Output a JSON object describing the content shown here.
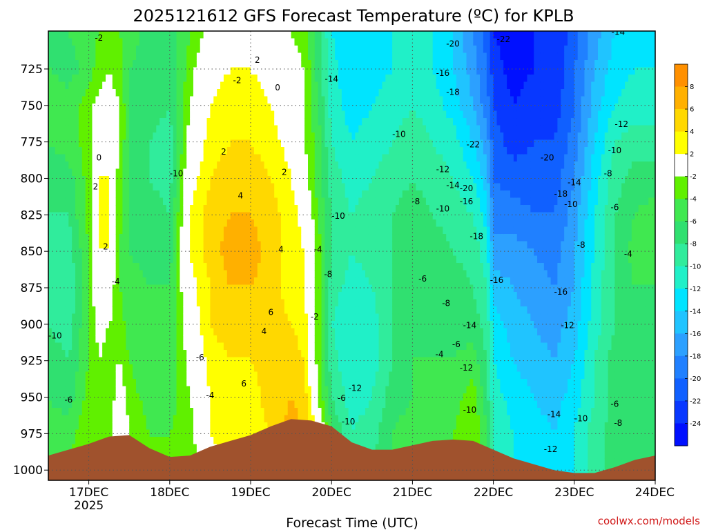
{
  "chart_data": {
    "type": "heatmap",
    "title": "2025121612 GFS Forecast Temperature (ºC) for KPLB",
    "xlabel": "Forecast Time (UTC)",
    "ylabel": "",
    "x_tick_labels": [
      "17DEC",
      "18DEC",
      "19DEC",
      "20DEC",
      "21DEC",
      "22DEC",
      "23DEC",
      "24DEC"
    ],
    "x_tick_year": "2025",
    "x_ticks_hours": [
      12,
      36,
      60,
      84,
      108,
      132,
      156,
      180
    ],
    "xlim_hours": [
      0,
      180
    ],
    "y_tick_labels": [
      "725",
      "750",
      "775",
      "800",
      "825",
      "850",
      "875",
      "900",
      "925",
      "950",
      "975",
      "1000"
    ],
    "y_ticks": [
      725,
      750,
      775,
      800,
      825,
      850,
      875,
      900,
      925,
      950,
      975,
      1000
    ],
    "ylim_hpa": [
      699,
      1007
    ],
    "grid": true,
    "colorbar": {
      "levels": [
        -26,
        -24,
        -22,
        -20,
        -18,
        -16,
        -14,
        -12,
        -10,
        -8,
        -6,
        -4,
        -2,
        2,
        4,
        6,
        8,
        10
      ],
      "colors": [
        "#0010ff",
        "#0838ff",
        "#1060ff",
        "#2080ff",
        "#2ca0ff",
        "#20c4ff",
        "#00e4ff",
        "#20f0c8",
        "#30ec9c",
        "#30e070",
        "#40e850",
        "#60f000",
        "#ffffff",
        "#ffff00",
        "#ffd800",
        "#ffb000",
        "#ff9000"
      ],
      "tick_labels": [
        "-24",
        "-22",
        "-20",
        "-18",
        "-16",
        "-14",
        "-12",
        "-10",
        "-8",
        "-6",
        "-4",
        "-2",
        "2",
        "4",
        "6",
        "8"
      ]
    },
    "columns": [
      {
        "x": 0,
        "t": [
          -6,
          -6,
          -4,
          -6,
          -7,
          -8,
          -9,
          -9,
          -8,
          -7,
          -6,
          -5,
          -4
        ]
      },
      {
        "x": 6,
        "t": [
          -6,
          -7,
          -5,
          -5,
          -7,
          -8,
          -9,
          -10,
          -9,
          -8,
          -7,
          -5,
          -4
        ]
      },
      {
        "x": 12,
        "t": [
          -5,
          -5,
          -3,
          -3,
          -3,
          -3,
          -4,
          -4,
          -4,
          -4,
          -3,
          -2,
          -2
        ]
      },
      {
        "x": 15,
        "t": [
          -4,
          -3,
          -1,
          1,
          2,
          3,
          2,
          1,
          -1,
          -2,
          -3,
          -4,
          -2
        ]
      },
      {
        "x": 18,
        "t": [
          -3,
          -2,
          -1,
          1,
          2,
          3,
          2,
          0,
          -2,
          -3,
          -4,
          -4,
          -3
        ]
      },
      {
        "x": 21,
        "t": [
          -4,
          -3,
          -2,
          -2,
          -3,
          -3,
          -4,
          -4,
          -3,
          -2,
          0,
          2,
          2
        ]
      },
      {
        "x": 24,
        "t": [
          -5,
          -6,
          -6,
          -6,
          -6,
          -6,
          -6,
          -5,
          -5,
          -4,
          -3,
          -2,
          -2
        ]
      },
      {
        "x": 30,
        "t": [
          -7,
          -7,
          -7,
          -8,
          -8,
          -7,
          -7,
          -6,
          -6,
          -6,
          -5,
          -4,
          -3
        ]
      },
      {
        "x": 36,
        "t": [
          -7,
          -8,
          -8,
          -9,
          -9,
          -8,
          -7,
          -6,
          -6,
          -6,
          -5,
          -4,
          -3
        ]
      },
      {
        "x": 42,
        "t": [
          -4,
          -3,
          -2,
          -1,
          1,
          2,
          2,
          1,
          0,
          -1,
          -2,
          -3,
          -4
        ]
      },
      {
        "x": 48,
        "t": [
          -1,
          1,
          2,
          3,
          4,
          5,
          5,
          4,
          4,
          3,
          2,
          2,
          1
        ]
      },
      {
        "x": 54,
        "t": [
          0,
          2,
          3,
          4,
          5,
          6,
          7,
          6,
          5,
          4,
          3,
          3,
          2
        ]
      },
      {
        "x": 60,
        "t": [
          1,
          2,
          3,
          4,
          5,
          6,
          7,
          6,
          5,
          4,
          3,
          3,
          2
        ]
      },
      {
        "x": 66,
        "t": [
          -1,
          1,
          2,
          3,
          4,
          5,
          5,
          5,
          5,
          5,
          5,
          4,
          3
        ]
      },
      {
        "x": 72,
        "t": [
          -2,
          -1,
          -1,
          1,
          2,
          3,
          3,
          3,
          4,
          5,
          6,
          7,
          6
        ]
      },
      {
        "x": 76,
        "t": [
          -3,
          -2,
          -2,
          -2,
          -1,
          1,
          2,
          2,
          3,
          4,
          5,
          6,
          5
        ]
      },
      {
        "x": 80,
        "t": [
          -7,
          -7,
          -6,
          -5,
          -5,
          -4,
          -3,
          -3,
          -3,
          -3,
          -2,
          2,
          3
        ]
      },
      {
        "x": 84,
        "t": [
          -12,
          -11,
          -11,
          -10,
          -9,
          -8,
          -8,
          -9,
          -10,
          -9,
          -8,
          -6,
          -5
        ]
      },
      {
        "x": 90,
        "t": [
          -14,
          -14,
          -13,
          -12,
          -11,
          -10,
          -10,
          -11,
          -12,
          -12,
          -11,
          -10,
          -9
        ]
      },
      {
        "x": 96,
        "t": [
          -13,
          -13,
          -12,
          -11,
          -10,
          -9,
          -9,
          -10,
          -11,
          -11,
          -10,
          -9,
          -8
        ]
      },
      {
        "x": 102,
        "t": [
          -12,
          -12,
          -11,
          -10,
          -9,
          -8,
          -8,
          -8,
          -8,
          -8,
          -7,
          -6,
          -6
        ]
      },
      {
        "x": 108,
        "t": [
          -11,
          -11,
          -10,
          -9,
          -8,
          -7,
          -7,
          -7,
          -7,
          -6,
          -6,
          -5,
          -5
        ]
      },
      {
        "x": 114,
        "t": [
          -12,
          -12,
          -11,
          -10,
          -9,
          -8,
          -7,
          -7,
          -7,
          -6,
          -5,
          -5,
          -5
        ]
      },
      {
        "x": 120,
        "t": [
          -14,
          -14,
          -13,
          -11,
          -10,
          -9,
          -8,
          -7,
          -7,
          -6,
          -5,
          -4,
          -4
        ]
      },
      {
        "x": 126,
        "t": [
          -18,
          -17,
          -16,
          -14,
          -12,
          -10,
          -9,
          -8,
          -7,
          -5,
          -3,
          -2,
          -2
        ]
      },
      {
        "x": 130,
        "t": [
          -21,
          -20,
          -19,
          -17,
          -15,
          -13,
          -11,
          -10,
          -9,
          -8,
          -7,
          -6,
          -6
        ]
      },
      {
        "x": 132,
        "t": [
          -24,
          -23,
          -22,
          -21,
          -20,
          -19,
          -17,
          -15,
          -13,
          -12,
          -11,
          -10,
          -10
        ]
      },
      {
        "x": 138,
        "t": [
          -25,
          -25,
          -24,
          -23,
          -21,
          -19,
          -17,
          -16,
          -15,
          -14,
          -13,
          -12,
          -12
        ]
      },
      {
        "x": 144,
        "t": [
          -24,
          -24,
          -23,
          -22,
          -21,
          -20,
          -18,
          -17,
          -16,
          -15,
          -14,
          -13,
          -13
        ]
      },
      {
        "x": 150,
        "t": [
          -24,
          -24,
          -23,
          -22,
          -21,
          -20,
          -19,
          -18,
          -17,
          -16,
          -15,
          -14,
          -13
        ]
      },
      {
        "x": 156,
        "t": [
          -21,
          -20,
          -20,
          -19,
          -18,
          -17,
          -16,
          -16,
          -15,
          -14,
          -13,
          -12,
          -12
        ]
      },
      {
        "x": 162,
        "t": [
          -17,
          -16,
          -15,
          -14,
          -13,
          -12,
          -12,
          -11,
          -11,
          -10,
          -10,
          -9,
          -9
        ]
      },
      {
        "x": 168,
        "t": [
          -14,
          -13,
          -12,
          -10,
          -9,
          -8,
          -8,
          -8,
          -8,
          -7,
          -7,
          -7,
          -7
        ]
      },
      {
        "x": 174,
        "t": [
          -13,
          -12,
          -11,
          -9,
          -7,
          -6,
          -5,
          -6,
          -7,
          -7,
          -7,
          -8,
          -8
        ]
      },
      {
        "x": 180,
        "t": [
          -13,
          -12,
          -11,
          -9,
          -7,
          -5,
          -5,
          -6,
          -7,
          -7,
          -7,
          -8,
          -8
        ]
      }
    ],
    "row_pressures_hpa": [
      700,
      725,
      750,
      775,
      800,
      825,
      850,
      875,
      900,
      925,
      950,
      975,
      1000
    ],
    "terrain": {
      "color": "#a0522d",
      "surface_pressure_hpa": [
        {
          "x": 0,
          "p": 990
        },
        {
          "x": 6,
          "p": 986
        },
        {
          "x": 12,
          "p": 982
        },
        {
          "x": 18,
          "p": 977
        },
        {
          "x": 24,
          "p": 976
        },
        {
          "x": 30,
          "p": 985
        },
        {
          "x": 36,
          "p": 991
        },
        {
          "x": 42,
          "p": 990
        },
        {
          "x": 48,
          "p": 984
        },
        {
          "x": 54,
          "p": 980
        },
        {
          "x": 60,
          "p": 976
        },
        {
          "x": 66,
          "p": 970
        },
        {
          "x": 72,
          "p": 965
        },
        {
          "x": 78,
          "p": 966
        },
        {
          "x": 84,
          "p": 970
        },
        {
          "x": 90,
          "p": 981
        },
        {
          "x": 96,
          "p": 986
        },
        {
          "x": 102,
          "p": 986
        },
        {
          "x": 108,
          "p": 983
        },
        {
          "x": 114,
          "p": 980
        },
        {
          "x": 120,
          "p": 979
        },
        {
          "x": 126,
          "p": 980
        },
        {
          "x": 132,
          "p": 986
        },
        {
          "x": 138,
          "p": 992
        },
        {
          "x": 144,
          "p": 996
        },
        {
          "x": 150,
          "p": 1000
        },
        {
          "x": 156,
          "p": 1002
        },
        {
          "x": 162,
          "p": 1002
        },
        {
          "x": 168,
          "p": 998
        },
        {
          "x": 174,
          "p": 993
        },
        {
          "x": 180,
          "p": 990
        }
      ]
    },
    "contour_labels": [
      {
        "x": 15,
        "p": 786,
        "text": "0"
      },
      {
        "x": 14,
        "p": 806,
        "text": "2"
      },
      {
        "x": 17,
        "p": 847,
        "text": "2"
      },
      {
        "x": 20,
        "p": 871,
        "text": "-4"
      },
      {
        "x": 15,
        "p": 704,
        "text": "-2"
      },
      {
        "x": 2,
        "p": 908,
        "text": "-10"
      },
      {
        "x": 6,
        "p": 952,
        "text": "-6"
      },
      {
        "x": 38,
        "p": 797,
        "text": "-10"
      },
      {
        "x": 45,
        "p": 923,
        "text": "-6"
      },
      {
        "x": 48,
        "p": 949,
        "text": "-4"
      },
      {
        "x": 62,
        "p": 719,
        "text": "2"
      },
      {
        "x": 56,
        "p": 733,
        "text": "-2"
      },
      {
        "x": 68,
        "p": 738,
        "text": "0"
      },
      {
        "x": 52,
        "p": 782,
        "text": "2"
      },
      {
        "x": 70,
        "p": 796,
        "text": "2"
      },
      {
        "x": 57,
        "p": 812,
        "text": "4"
      },
      {
        "x": 69,
        "p": 849,
        "text": "4"
      },
      {
        "x": 66,
        "p": 892,
        "text": "6"
      },
      {
        "x": 64,
        "p": 905,
        "text": "4"
      },
      {
        "x": 58,
        "p": 941,
        "text": "6"
      },
      {
        "x": 80,
        "p": 849,
        "text": "-4"
      },
      {
        "x": 79,
        "p": 895,
        "text": "-2"
      },
      {
        "x": 86,
        "p": 826,
        "text": "-10"
      },
      {
        "x": 83,
        "p": 866,
        "text": "-8"
      },
      {
        "x": 84,
        "p": 732,
        "text": "-14"
      },
      {
        "x": 104,
        "p": 770,
        "text": "-10"
      },
      {
        "x": 109,
        "p": 816,
        "text": "-8"
      },
      {
        "x": 87,
        "p": 951,
        "text": "-6"
      },
      {
        "x": 91,
        "p": 944,
        "text": "-12"
      },
      {
        "x": 89,
        "p": 967,
        "text": "-10"
      },
      {
        "x": 111,
        "p": 869,
        "text": "-6"
      },
      {
        "x": 117,
        "p": 728,
        "text": "-16"
      },
      {
        "x": 120,
        "p": 708,
        "text": "-20"
      },
      {
        "x": 120,
        "p": 741,
        "text": "-18"
      },
      {
        "x": 117,
        "p": 794,
        "text": "-12"
      },
      {
        "x": 120,
        "p": 805,
        "text": "-14"
      },
      {
        "x": 117,
        "p": 821,
        "text": "-10"
      },
      {
        "x": 118,
        "p": 886,
        "text": "-8"
      },
      {
        "x": 121,
        "p": 914,
        "text": "-6"
      },
      {
        "x": 116,
        "p": 921,
        "text": "-4"
      },
      {
        "x": 125,
        "p": 901,
        "text": "-14"
      },
      {
        "x": 124,
        "p": 930,
        "text": "-12"
      },
      {
        "x": 125,
        "p": 959,
        "text": "-10"
      },
      {
        "x": 124,
        "p": 816,
        "text": "-16"
      },
      {
        "x": 126,
        "p": 777,
        "text": "-22"
      },
      {
        "x": 124,
        "p": 807,
        "text": "-20"
      },
      {
        "x": 127,
        "p": 840,
        "text": "-18"
      },
      {
        "x": 133,
        "p": 870,
        "text": "-16"
      },
      {
        "x": 135,
        "p": 705,
        "text": "-22"
      },
      {
        "x": 148,
        "p": 786,
        "text": "-20"
      },
      {
        "x": 152,
        "p": 811,
        "text": "-18"
      },
      {
        "x": 156,
        "p": 803,
        "text": "-14"
      },
      {
        "x": 155,
        "p": 818,
        "text": "-10"
      },
      {
        "x": 152,
        "p": 878,
        "text": "-16"
      },
      {
        "x": 154,
        "p": 901,
        "text": "-12"
      },
      {
        "x": 150,
        "p": 962,
        "text": "-14"
      },
      {
        "x": 149,
        "p": 986,
        "text": "-12"
      },
      {
        "x": 158,
        "p": 846,
        "text": "-8"
      },
      {
        "x": 158,
        "p": 965,
        "text": "-10"
      },
      {
        "x": 169,
        "p": 700,
        "text": "-14"
      },
      {
        "x": 170,
        "p": 763,
        "text": "-12"
      },
      {
        "x": 168,
        "p": 781,
        "text": "-10"
      },
      {
        "x": 166,
        "p": 797,
        "text": "-8"
      },
      {
        "x": 168,
        "p": 820,
        "text": "-6"
      },
      {
        "x": 172,
        "p": 852,
        "text": "-4"
      },
      {
        "x": 168,
        "p": 955,
        "text": "-6"
      },
      {
        "x": 169,
        "p": 968,
        "text": "-8"
      }
    ]
  },
  "credit": "coolwx.com/models"
}
